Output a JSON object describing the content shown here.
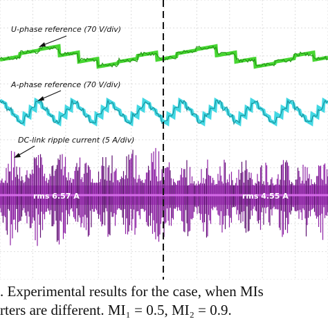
{
  "chart_data": {
    "type": "line",
    "title": "",
    "traces": [
      {
        "label": "U-phase reference (70 V/div)",
        "color": "#33d11c"
      },
      {
        "label": "A-phase reference (70 V/div)",
        "color": "#2fd4e0"
      },
      {
        "label": "DC-link ripple current (5 A/div)",
        "color": "#8c1ea3"
      }
    ],
    "annotations": [
      {
        "text": "rms 6.57 A",
        "segment": "left"
      },
      {
        "text": "rms 4.55 A",
        "segment": "right"
      }
    ],
    "marker": {
      "style": "dashed vertical line",
      "position": "center"
    },
    "grid": true
  },
  "caption": {
    "line1": ". Experimental results for the case, when MIs",
    "line2": "rters are different. MI₁ = 0.5, MI₂ = 0.9."
  }
}
